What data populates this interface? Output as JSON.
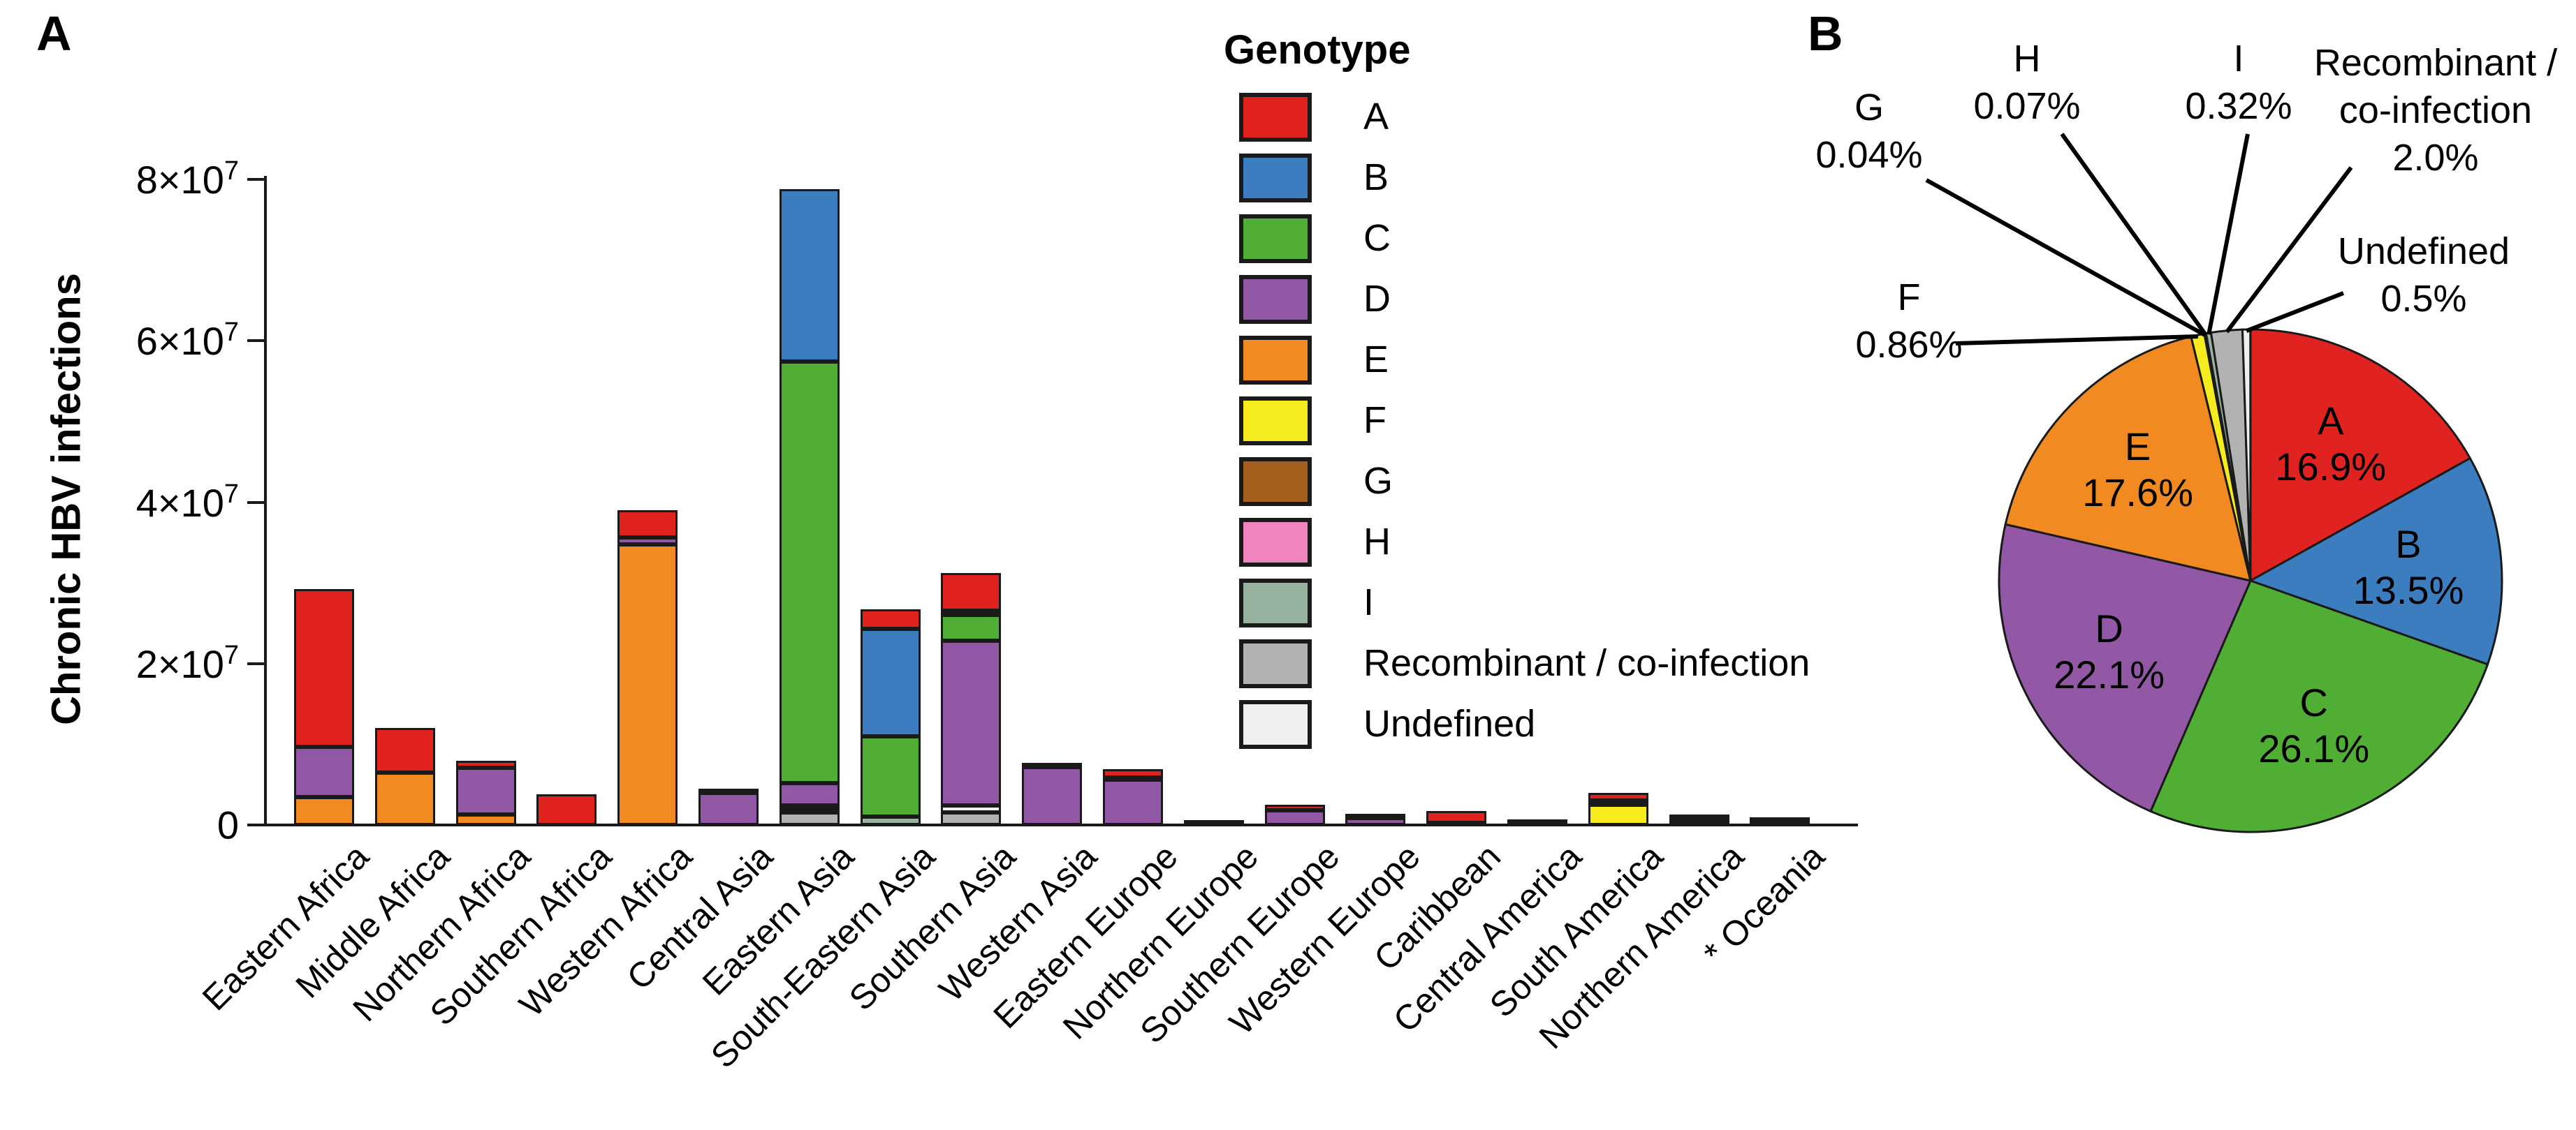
{
  "panel_a_label": "A",
  "panel_b_label": "B",
  "legend": {
    "title": "Genotype",
    "items": [
      {
        "key": "A",
        "label": "A"
      },
      {
        "key": "B",
        "label": "B"
      },
      {
        "key": "C",
        "label": "C"
      },
      {
        "key": "D",
        "label": "D"
      },
      {
        "key": "E",
        "label": "E"
      },
      {
        "key": "F",
        "label": "F"
      },
      {
        "key": "G",
        "label": "G"
      },
      {
        "key": "H",
        "label": "H"
      },
      {
        "key": "I",
        "label": "I"
      },
      {
        "key": "Recombinant",
        "label": "Recombinant / co-infection"
      },
      {
        "key": "Undefined",
        "label": "Undefined"
      }
    ]
  },
  "genotype_colors": {
    "A": "#e02321",
    "B": "#3b7dbf",
    "C": "#4fae33",
    "D": "#9257a5",
    "E": "#f08a21",
    "F": "#f5eb1e",
    "G": "#a45f1c",
    "H": "#ee85bf",
    "I": "#97b3a0",
    "Recombinant": "#b2b2b2",
    "Undefined": "#efefef"
  },
  "chart_data": [
    {
      "type": "bar",
      "stacked": true,
      "title": "",
      "xlabel": "",
      "ylabel": "Chronic HBV infections",
      "ylim": [
        0,
        80000000
      ],
      "grid": false,
      "yticks": [
        {
          "value": 0,
          "base": "0",
          "exp": ""
        },
        {
          "value": 20000000,
          "base": "2×10",
          "exp": "7"
        },
        {
          "value": 40000000,
          "base": "4×10",
          "exp": "7"
        },
        {
          "value": 60000000,
          "base": "6×10",
          "exp": "7"
        },
        {
          "value": 80000000,
          "base": "8×10",
          "exp": "7"
        }
      ],
      "categories": [
        "Eastern Africa",
        "Middle Africa",
        "Northern Africa",
        "Southern Africa",
        "Western Africa",
        "Central Asia",
        "Eastern Asia",
        "South-Eastern Asia",
        "Southern Asia",
        "Western Asia",
        "Eastern Europe",
        "Northern Europe",
        "Southern Europe",
        "Western Europe",
        "Caribbean",
        "Central America",
        "South America",
        "Northern America",
        "* Oceania"
      ],
      "bars": [
        {
          "region": "Eastern Africa",
          "total": 29200000,
          "segments": [
            {
              "genotype": "E",
              "value": 3500000
            },
            {
              "genotype": "D",
              "value": 6200000
            },
            {
              "genotype": "A",
              "value": 19500000
            }
          ]
        },
        {
          "region": "Middle Africa",
          "total": 12000000,
          "segments": [
            {
              "genotype": "E",
              "value": 6500000
            },
            {
              "genotype": "A",
              "value": 5500000
            }
          ]
        },
        {
          "region": "Northern Africa",
          "total": 8000000,
          "segments": [
            {
              "genotype": "E",
              "value": 1300000
            },
            {
              "genotype": "D",
              "value": 5800000
            },
            {
              "genotype": "A",
              "value": 900000
            }
          ]
        },
        {
          "region": "Southern Africa",
          "total": 3800000,
          "segments": [
            {
              "genotype": "A",
              "value": 3800000
            }
          ]
        },
        {
          "region": "Western Africa",
          "total": 39000000,
          "segments": [
            {
              "genotype": "E",
              "value": 34800000
            },
            {
              "genotype": "D",
              "value": 800000
            },
            {
              "genotype": "A",
              "value": 3400000
            }
          ]
        },
        {
          "region": "Central Asia",
          "total": 4400000,
          "segments": [
            {
              "genotype": "D",
              "value": 4000000
            },
            {
              "genotype": "A",
              "value": 400000
            }
          ]
        },
        {
          "region": "Eastern Asia",
          "total": 78800000,
          "segments": [
            {
              "genotype": "Recombinant",
              "value": 1600000
            },
            {
              "genotype": "Undefined",
              "value": 400000
            },
            {
              "genotype": "I",
              "value": 400000
            },
            {
              "genotype": "D",
              "value": 2800000
            },
            {
              "genotype": "C",
              "value": 52200000
            },
            {
              "genotype": "B",
              "value": 21400000
            }
          ]
        },
        {
          "region": "South-Eastern Asia",
          "total": 26700000,
          "segments": [
            {
              "genotype": "I",
              "value": 1000000
            },
            {
              "genotype": "C",
              "value": 10000000
            },
            {
              "genotype": "B",
              "value": 13300000
            },
            {
              "genotype": "A",
              "value": 2400000
            }
          ]
        },
        {
          "region": "Southern Asia",
          "total": 31200000,
          "segments": [
            {
              "genotype": "Recombinant",
              "value": 1600000
            },
            {
              "genotype": "Undefined",
              "value": 800000
            },
            {
              "genotype": "D",
              "value": 20400000
            },
            {
              "genotype": "C",
              "value": 3200000
            },
            {
              "genotype": "B",
              "value": 600000
            },
            {
              "genotype": "A",
              "value": 4600000
            }
          ]
        },
        {
          "region": "Western Asia",
          "total": 7700000,
          "segments": [
            {
              "genotype": "D",
              "value": 7200000
            },
            {
              "genotype": "A",
              "value": 500000
            }
          ]
        },
        {
          "region": "Eastern Europe",
          "total": 6900000,
          "segments": [
            {
              "genotype": "D",
              "value": 5600000
            },
            {
              "genotype": "B",
              "value": 300000
            },
            {
              "genotype": "A",
              "value": 1000000
            }
          ]
        },
        {
          "region": "Northern Europe",
          "total": 200000,
          "segments": [
            {
              "genotype": "D",
              "value": 100000
            },
            {
              "genotype": "A",
              "value": 100000
            }
          ]
        },
        {
          "region": "Southern Europe",
          "total": 2500000,
          "segments": [
            {
              "genotype": "D",
              "value": 1800000
            },
            {
              "genotype": "A",
              "value": 700000
            }
          ]
        },
        {
          "region": "Western Europe",
          "total": 1300000,
          "segments": [
            {
              "genotype": "D",
              "value": 900000
            },
            {
              "genotype": "A",
              "value": 400000
            }
          ]
        },
        {
          "region": "Caribbean",
          "total": 1700000,
          "segments": [
            {
              "genotype": "D",
              "value": 300000
            },
            {
              "genotype": "A",
              "value": 1400000
            }
          ]
        },
        {
          "region": "Central America",
          "total": 400000,
          "segments": [
            {
              "genotype": "D",
              "value": 200000
            },
            {
              "genotype": "A",
              "value": 200000
            }
          ]
        },
        {
          "region": "South America",
          "total": 4000000,
          "segments": [
            {
              "genotype": "F",
              "value": 2500000
            },
            {
              "genotype": "D",
              "value": 500000
            },
            {
              "genotype": "A",
              "value": 1000000
            }
          ]
        },
        {
          "region": "Northern America",
          "total": 1200000,
          "segments": [
            {
              "genotype": "B",
              "value": 200000
            },
            {
              "genotype": "C",
              "value": 400000
            },
            {
              "genotype": "D",
              "value": 200000
            },
            {
              "genotype": "A",
              "value": 400000
            }
          ]
        },
        {
          "region": "* Oceania",
          "total": 500000,
          "segments": [
            {
              "genotype": "C",
              "value": 200000
            },
            {
              "genotype": "D",
              "value": 200000
            },
            {
              "genotype": "A",
              "value": 100000
            }
          ]
        }
      ]
    },
    {
      "type": "pie",
      "clockwise_from_top": true,
      "slices": [
        {
          "genotype": "A",
          "label": "A",
          "pct": 16.9,
          "pct_label": "16.9%",
          "label_style": "inside"
        },
        {
          "genotype": "B",
          "label": "B",
          "pct": 13.5,
          "pct_label": "13.5%",
          "label_style": "inside"
        },
        {
          "genotype": "C",
          "label": "C",
          "pct": 26.1,
          "pct_label": "26.1%",
          "label_style": "inside"
        },
        {
          "genotype": "D",
          "label": "D",
          "pct": 22.1,
          "pct_label": "22.1%",
          "label_style": "inside"
        },
        {
          "genotype": "E",
          "label": "E",
          "pct": 17.6,
          "pct_label": "17.6%",
          "label_style": "inside"
        },
        {
          "genotype": "F",
          "label": "F",
          "pct": 0.86,
          "pct_label": "0.86%",
          "label_style": "callout",
          "callout_lines": [
            "F",
            "0.86%"
          ]
        },
        {
          "genotype": "G",
          "label": "G",
          "pct": 0.04,
          "pct_label": "0.04%",
          "label_style": "callout",
          "callout_lines": [
            "G",
            "0.04%"
          ]
        },
        {
          "genotype": "H",
          "label": "H",
          "pct": 0.07,
          "pct_label": "0.07%",
          "label_style": "callout",
          "callout_lines": [
            "H",
            "0.07%"
          ]
        },
        {
          "genotype": "I",
          "label": "I",
          "pct": 0.32,
          "pct_label": "0.32%",
          "label_style": "callout",
          "callout_lines": [
            "I",
            "0.32%"
          ]
        },
        {
          "genotype": "Recombinant",
          "label": "Recombinant / co-infection",
          "pct": 2.0,
          "pct_label": "2.0%",
          "label_style": "callout",
          "callout_lines": [
            "Recombinant /",
            "co-infection",
            "2.0%"
          ]
        },
        {
          "genotype": "Undefined",
          "label": "Undefined",
          "pct": 0.5,
          "pct_label": "0.5%",
          "label_style": "callout",
          "callout_lines": [
            "Undefined",
            "0.5%"
          ]
        }
      ]
    }
  ]
}
